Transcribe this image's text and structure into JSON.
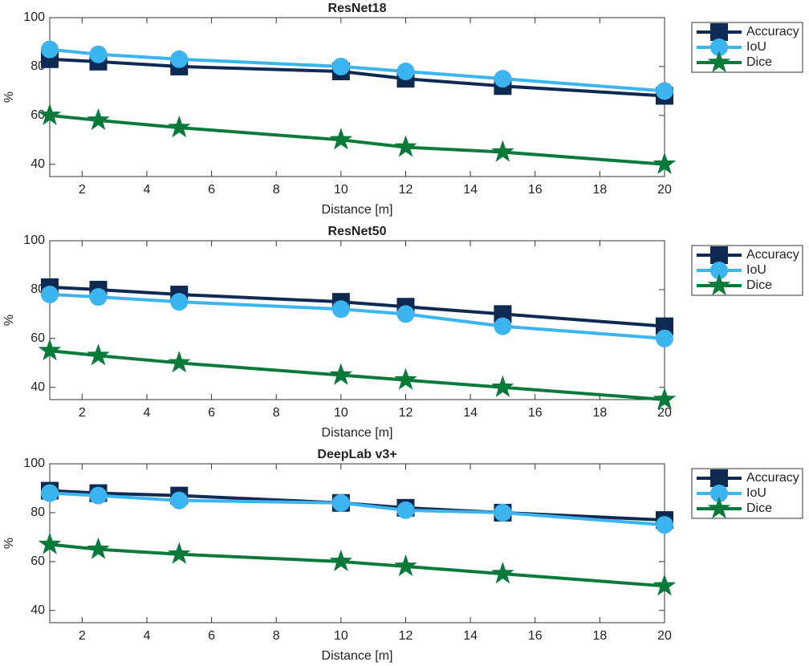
{
  "chart_data": [
    {
      "type": "line",
      "title": "ResNet18",
      "xlabel": "Distance [m]",
      "ylabel": "%",
      "x": [
        1,
        2.5,
        5,
        10,
        12,
        15,
        20
      ],
      "xlim": [
        1,
        20
      ],
      "xticks": [
        2,
        4,
        6,
        8,
        10,
        12,
        14,
        16,
        18,
        20
      ],
      "ylim": [
        35,
        100
      ],
      "yticks": [
        40,
        60,
        80,
        100
      ],
      "legend": "outside-right",
      "series": [
        {
          "name": "Accuracy",
          "color": "#0f2a52",
          "marker": "square",
          "values": [
            83,
            82,
            80,
            78,
            75,
            72,
            68
          ]
        },
        {
          "name": "IoU",
          "color": "#3cb4f0",
          "marker": "circle",
          "values": [
            87,
            85,
            83,
            80,
            78,
            75,
            70
          ]
        },
        {
          "name": "Dice",
          "color": "#0a7a3a",
          "marker": "star",
          "values": [
            60,
            58,
            55,
            50,
            47,
            45,
            40
          ]
        }
      ]
    },
    {
      "type": "line",
      "title": "ResNet50",
      "xlabel": "Distance [m]",
      "ylabel": "%",
      "x": [
        1,
        2.5,
        5,
        10,
        12,
        15,
        20
      ],
      "xlim": [
        1,
        20
      ],
      "xticks": [
        2,
        4,
        6,
        8,
        10,
        12,
        14,
        16,
        18,
        20
      ],
      "ylim": [
        35,
        100
      ],
      "yticks": [
        40,
        60,
        80,
        100
      ],
      "legend": "outside-right",
      "series": [
        {
          "name": "Accuracy",
          "color": "#0f2a52",
          "marker": "square",
          "values": [
            81,
            80,
            78,
            75,
            73,
            70,
            65
          ]
        },
        {
          "name": "IoU",
          "color": "#3cb4f0",
          "marker": "circle",
          "values": [
            78,
            77,
            75,
            72,
            70,
            65,
            60
          ]
        },
        {
          "name": "Dice",
          "color": "#0a7a3a",
          "marker": "star",
          "values": [
            55,
            53,
            50,
            45,
            43,
            40,
            35
          ]
        }
      ]
    },
    {
      "type": "line",
      "title": "DeepLab v3+",
      "xlabel": "Distance [m]",
      "ylabel": "%",
      "x": [
        1,
        2.5,
        5,
        10,
        12,
        15,
        20
      ],
      "xlim": [
        1,
        20
      ],
      "xticks": [
        2,
        4,
        6,
        8,
        10,
        12,
        14,
        16,
        18,
        20
      ],
      "ylim": [
        35,
        100
      ],
      "yticks": [
        40,
        60,
        80,
        100
      ],
      "legend": "outside-right",
      "series": [
        {
          "name": "Accuracy",
          "color": "#0f2a52",
          "marker": "square",
          "values": [
            89,
            88,
            87,
            84,
            82,
            80,
            77
          ]
        },
        {
          "name": "IoU",
          "color": "#3cb4f0",
          "marker": "circle",
          "values": [
            88,
            87,
            85,
            84,
            81,
            80,
            75
          ]
        },
        {
          "name": "Dice",
          "color": "#0a7a3a",
          "marker": "star",
          "values": [
            67,
            65,
            63,
            60,
            58,
            55,
            50
          ]
        }
      ]
    }
  ]
}
